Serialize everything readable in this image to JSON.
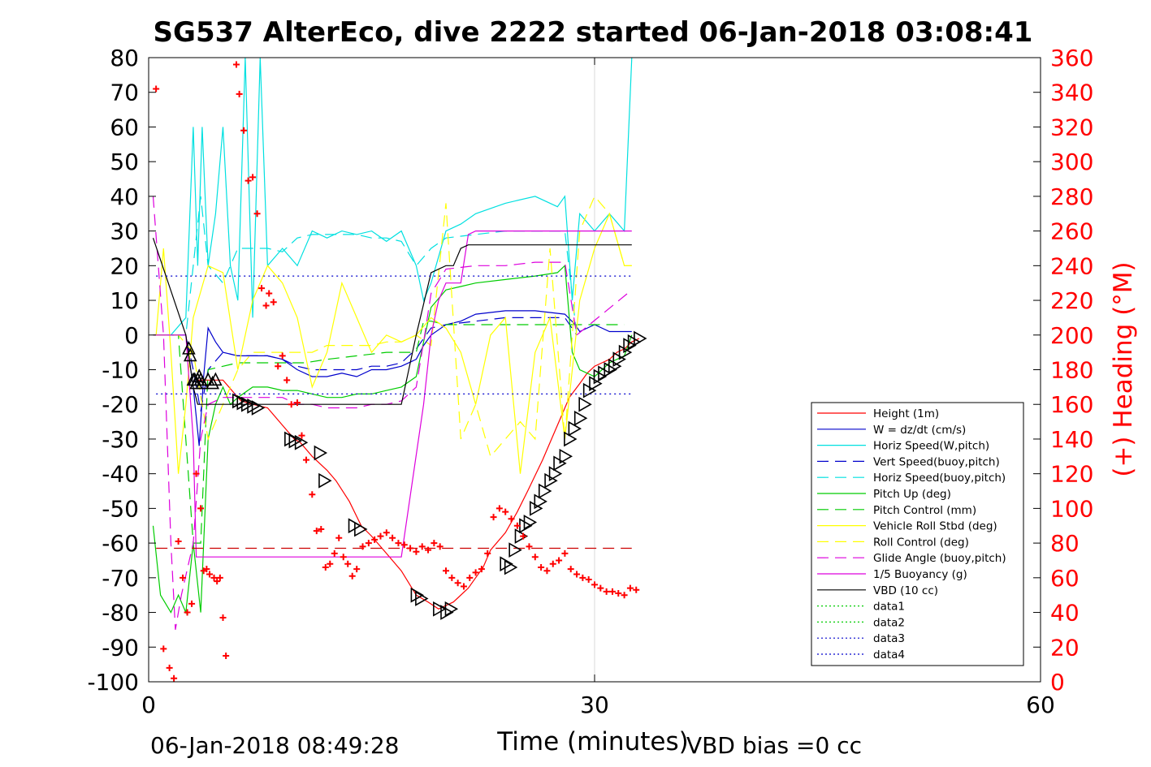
{
  "chart_data": {
    "type": "line",
    "title": "SG537 AlterEco, dive 2222 started 06-Jan-2018 03:08:41",
    "xlabel": "Time (minutes)",
    "ylabel_right": "(+) Heading (°M)",
    "xlim": [
      0,
      60
    ],
    "ylim": [
      -100,
      80
    ],
    "ylim_right": [
      0,
      360
    ],
    "xticks": [
      0,
      30,
      60
    ],
    "yticks": [
      80,
      70,
      60,
      50,
      40,
      30,
      20,
      10,
      0,
      -10,
      -20,
      -30,
      -40,
      -50,
      -60,
      -70,
      -80,
      -90,
      -100
    ],
    "yticks_right": [
      360,
      340,
      320,
      300,
      280,
      260,
      240,
      220,
      200,
      180,
      160,
      140,
      120,
      100,
      80,
      60,
      40,
      20,
      0
    ],
    "grid": "x only",
    "legend_position": "lower-right",
    "footer_left": "06-Jan-2018 08:49:28",
    "footer_right": "VBD bias =0 cc",
    "colors": {
      "axis": "#000000",
      "right_axis": "#ff0000"
    },
    "series": [
      {
        "name": "Height (1m)",
        "color": "#ff0000",
        "style": "solid",
        "x": [
          3.2,
          4.0,
          5.0,
          6.2,
          7.0,
          8.0,
          9.0,
          9.8,
          10.2,
          11.0,
          12.0,
          12.6,
          13.5,
          14.3,
          15.0,
          16.0,
          17.0,
          18.0,
          18.8,
          19.5,
          20.5,
          21.5,
          22.0,
          22.5,
          23.0,
          24.0,
          24.8,
          25.5,
          26.5,
          27.5,
          28.3,
          29.0,
          29.5,
          30.0,
          30.5,
          31.0,
          31.5,
          32.0,
          32.5,
          33.0
        ],
        "y": [
          -13,
          -13,
          -13,
          -19,
          -20,
          -21,
          -26,
          -30,
          -31,
          -35,
          -39,
          -42,
          -48,
          -55,
          -58,
          -63,
          -68,
          -75,
          -77,
          -79,
          -77,
          -73,
          -70,
          -67,
          -62,
          -57,
          -51,
          -45,
          -36,
          -26,
          -18,
          -14,
          -11,
          -9,
          -8,
          -7,
          -5,
          -4,
          -2,
          -1
        ]
      },
      {
        "name": "W = dz/dt (cm/s)",
        "color": "#0000cc",
        "style": "solid",
        "x": [
          0.5,
          1.5,
          2.5,
          3.0,
          3.4,
          3.7,
          4.0,
          4.5,
          5.0,
          6.0,
          7.0,
          8.0,
          9.0,
          10.0,
          11.0,
          12.0,
          13.0,
          14.0,
          15.0,
          16.0,
          17.0,
          18.0,
          18.5,
          19.0,
          20.0,
          21.0,
          22.0,
          24.0,
          26.0,
          28.0,
          28.7,
          29.0,
          30.0,
          31.0,
          32.0,
          32.5
        ],
        "y": [
          0,
          0,
          0,
          -15,
          -32,
          -12,
          2,
          -2,
          -5,
          -6,
          -6,
          -6,
          -7,
          -10,
          -12,
          -12,
          -11,
          -12,
          -10,
          -10,
          -9,
          -7,
          -3,
          0,
          3,
          4,
          6,
          7,
          7,
          6,
          3,
          1,
          3,
          1,
          1,
          1
        ]
      },
      {
        "name": "Horiz Speed(W,pitch)",
        "color": "#00e0e0",
        "style": "solid",
        "x": [
          0.5,
          1.5,
          2.5,
          3.0,
          3.3,
          3.6,
          4.0,
          4.5,
          5.0,
          5.5,
          6.0,
          6.5,
          7.0,
          7.5,
          8.0,
          9.0,
          10.0,
          11.0,
          12.0,
          13.0,
          14.0,
          15.0,
          16.0,
          17.0,
          18.0,
          18.5,
          19.0,
          20.0,
          21.0,
          22.0,
          24.0,
          26.0,
          27.5,
          28.0,
          28.5,
          29.0,
          30.0,
          31.0,
          32.0,
          32.5
        ],
        "y": [
          0,
          0,
          5,
          60,
          20,
          60,
          20,
          35,
          60,
          20,
          10,
          80,
          5,
          80,
          20,
          25,
          20,
          30,
          28,
          30,
          29,
          30,
          27,
          30,
          20,
          10,
          15,
          30,
          32,
          35,
          38,
          40,
          37,
          40,
          10,
          35,
          30,
          35,
          30,
          80
        ]
      },
      {
        "name": "Vert Speed(buoy,pitch)",
        "color": "#0000cc",
        "style": "dashed",
        "x": [
          0.5,
          1.5,
          2.5,
          3.0,
          3.5,
          4.0,
          5.0,
          6.0,
          7.0,
          8.0,
          9.0,
          10.0,
          11.0,
          12.0,
          13.0,
          14.0,
          15.0,
          16.0,
          17.0,
          18.0,
          19.0,
          20.0,
          22.0,
          24.0,
          26.0,
          28.0,
          28.8
        ],
        "y": [
          0,
          0,
          0,
          -10,
          -22,
          -10,
          -5,
          -6,
          -6,
          -6,
          -7,
          -9,
          -10,
          -10,
          -10,
          -10,
          -9,
          -9,
          -8,
          -4,
          2,
          3,
          4,
          5,
          5,
          5,
          0
        ]
      },
      {
        "name": "Horiz Speed(buoy,pitch)",
        "color": "#00e0e0",
        "style": "dashed",
        "x": [
          0.5,
          1.5,
          2.5,
          3.0,
          3.5,
          4.0,
          5.0,
          6.0,
          7.0,
          8.0,
          9.0,
          10.0,
          11.0,
          12.0,
          13.0,
          14.0,
          15.0,
          16.0,
          17.0,
          18.0,
          19.0,
          20.0,
          22.0,
          24.0,
          26.0,
          28.0,
          28.8
        ],
        "y": [
          0,
          0,
          0,
          20,
          40,
          20,
          15,
          25,
          25,
          25,
          24,
          28,
          29,
          29,
          29,
          29,
          28,
          28,
          27,
          20,
          25,
          28,
          29,
          30,
          30,
          30,
          0
        ]
      },
      {
        "name": "Pitch Up (deg)",
        "color": "#00cc00",
        "style": "solid",
        "x": [
          0.3,
          0.8,
          1.5,
          2.0,
          2.5,
          3.0,
          3.5,
          4.0,
          4.5,
          5.0,
          5.5,
          6.0,
          7.0,
          8.0,
          9.0,
          10.0,
          11.0,
          12.0,
          13.0,
          14.0,
          15.0,
          16.0,
          17.0,
          18.0,
          18.5,
          19.0,
          20.0,
          21.0,
          22.0,
          24.0,
          26.0,
          27.5,
          28.0,
          28.5,
          29.0,
          30.0,
          31.0,
          32.0,
          32.5
        ],
        "y": [
          -55,
          -75,
          -80,
          -75,
          -80,
          -60,
          -80,
          -30,
          -20,
          -15,
          -20,
          -18,
          -15,
          -15,
          -16,
          -16,
          -17,
          -18,
          -18,
          -17,
          -17,
          -16,
          -15,
          -12,
          -2,
          8,
          13,
          14,
          15,
          16,
          17,
          18,
          20,
          -5,
          -10,
          -12,
          -8,
          -6,
          0
        ]
      },
      {
        "name": "Pitch Control (mm)",
        "color": "#00cc00",
        "style": "dashed",
        "x": [
          0.3,
          2.0,
          3.0,
          3.5,
          4.0,
          6.0,
          8.0,
          10.0,
          10.5,
          12.0,
          14.0,
          16.0,
          18.0,
          18.5,
          19.0,
          20.0,
          22.0,
          24.0,
          26.0,
          28.0,
          28.8,
          30.0,
          32.0
        ],
        "y": [
          0,
          0,
          -60,
          -60,
          -10,
          -8,
          -8,
          -8,
          -8,
          -7,
          -6,
          -5,
          -5,
          4,
          4,
          3,
          3,
          3,
          3,
          3,
          3,
          3,
          3
        ]
      },
      {
        "name": "Vehicle Roll Stbd (deg)",
        "color": "#ffff00",
        "style": "solid",
        "x": [
          0.5,
          1.0,
          1.5,
          2.0,
          2.5,
          3.0,
          4.0,
          5.0,
          6.0,
          7.0,
          8.0,
          9.0,
          10.0,
          11.0,
          12.0,
          13.0,
          14.0,
          15.0,
          16.0,
          17.0,
          18.0,
          19.0,
          20.0,
          21.0,
          22.0,
          23.0,
          24.0,
          25.0,
          26.0,
          27.0,
          28.0,
          29.0,
          30.0,
          31.0,
          32.0,
          32.5
        ],
        "y": [
          0,
          25,
          -5,
          -40,
          -20,
          5,
          20,
          18,
          -10,
          10,
          20,
          15,
          5,
          -15,
          -5,
          15,
          5,
          -5,
          0,
          -2,
          0,
          5,
          2,
          -5,
          -20,
          0,
          5,
          -40,
          -5,
          5,
          -30,
          10,
          25,
          35,
          20,
          20
        ]
      },
      {
        "name": "Roll Control (deg)",
        "color": "#ffff00",
        "style": "dashed",
        "x": [
          0.5,
          2.0,
          3.0,
          4.0,
          5.0,
          6.0,
          7.0,
          8.0,
          9.0,
          10.0,
          11.0,
          12.0,
          13.0,
          14.0,
          15.0,
          16.0,
          17.0,
          18.0,
          19.0,
          20.0,
          21.0,
          22.0,
          23.0,
          24.0,
          25.0,
          26.0,
          27.0,
          28.0,
          29.0,
          30.0,
          31.0,
          32.0,
          32.5
        ],
        "y": [
          0,
          0,
          -5,
          -30,
          -20,
          -10,
          -5,
          -5,
          -5,
          -5,
          -5,
          -3,
          -3,
          -3,
          -3,
          -2,
          -2,
          0,
          -3,
          38,
          -30,
          -20,
          -35,
          -30,
          -25,
          -30,
          25,
          -30,
          30,
          40,
          35,
          20,
          20
        ]
      },
      {
        "name": "Glide Angle (buoy,pitch)",
        "color": "#dd00dd",
        "style": "dashed",
        "x": [
          0.3,
          1.0,
          1.5,
          1.8,
          2.2,
          3.0,
          3.5,
          4.0,
          5.0,
          6.0,
          7.0,
          8.0,
          9.0,
          10.0,
          11.0,
          12.0,
          13.0,
          14.0,
          15.0,
          16.0,
          17.0,
          18.0,
          18.5,
          19.0,
          20.0,
          22.0,
          24.0,
          26.0,
          28.0,
          28.8,
          32.5
        ],
        "y": [
          40,
          0,
          -60,
          -85,
          -75,
          -60,
          -30,
          -20,
          -18,
          -18,
          -18,
          -18,
          -18,
          -20,
          -20,
          -21,
          -21,
          -21,
          -20,
          -20,
          -19,
          -15,
          -2,
          12,
          19,
          20,
          20,
          21,
          21,
          0,
          13
        ]
      },
      {
        "name": "1/5 Buoyancy (g)",
        "color": "#dd00dd",
        "style": "solid",
        "x": [
          0.3,
          2.5,
          3.0,
          3.2,
          4.0,
          8.0,
          12.0,
          14.0,
          16.0,
          17.0,
          18.5,
          19.0,
          19.5,
          20.0,
          21.0,
          21.5,
          22.0,
          32.5
        ],
        "y": [
          0,
          0,
          -30,
          -64,
          -64,
          -64,
          -64,
          -64,
          -64,
          -64,
          -20,
          0,
          10,
          15,
          15,
          29,
          30,
          30
        ]
      },
      {
        "name": "VBD (10 cc)",
        "color": "#000000",
        "style": "solid",
        "x": [
          0.3,
          2.5,
          3.0,
          3.3,
          4.0,
          8.0,
          12.0,
          17.0,
          18.0,
          19.0,
          20.0,
          20.5,
          21.0,
          21.5,
          22.0,
          32.5
        ],
        "y": [
          28,
          0,
          -15,
          -20,
          -20,
          -20,
          -20,
          -20,
          0,
          18,
          20,
          20,
          25,
          26,
          26,
          26
        ]
      },
      {
        "name": "data1",
        "color": "#00cc00",
        "style": "dotted",
        "x": [],
        "y": []
      },
      {
        "name": "data2",
        "color": "#00cc00",
        "style": "dotted",
        "x": [],
        "y": []
      },
      {
        "name": "data3",
        "color": "#0000cc",
        "style": "dotted",
        "x": [
          0.5,
          32.5
        ],
        "y": [
          17,
          17
        ]
      },
      {
        "name": "data4",
        "color": "#0000cc",
        "style": "dotted",
        "x": [
          0.5,
          32.5
        ],
        "y": [
          -17,
          -17
        ]
      }
    ],
    "reference_lines": [
      {
        "color": "#cc0000",
        "style": "dashed",
        "y": -61.5,
        "x": [
          0.5,
          32.5
        ]
      }
    ],
    "markers": {
      "triangles_up": {
        "x": [
          2.7,
          2.8,
          3.0,
          3.1,
          3.2,
          3.3,
          3.4,
          3.5,
          3.6,
          4.0,
          4.3,
          4.5
        ],
        "y": [
          -4,
          -6,
          -13,
          -13,
          -14,
          -13,
          -12,
          -13,
          -14,
          -13,
          -14,
          -13
        ]
      },
      "triangles_down": {
        "x": [
          6.0,
          6.3,
          6.6,
          7.0,
          7.3,
          9.5,
          9.8,
          10.2,
          11.5,
          11.8,
          13.8,
          14.2,
          18.0,
          18.3,
          19.5,
          20.0,
          20.3,
          24.0,
          24.3,
          24.6,
          25.0,
          25.3,
          25.6,
          26.0,
          26.3,
          26.6,
          27.0,
          27.3,
          27.6,
          28.0,
          28.3,
          28.6,
          29.0,
          29.3,
          29.6,
          30.0,
          30.3,
          30.6,
          31.0,
          31.3,
          31.6,
          32.0,
          32.3,
          32.6,
          33.0
        ],
        "y": [
          -19,
          -19.5,
          -20,
          -20.5,
          -21,
          -30,
          -30.5,
          -31,
          -34,
          -42,
          -55,
          -56,
          -75,
          -76,
          -79,
          -80,
          -79,
          -66,
          -67,
          -62,
          -58,
          -55,
          -54,
          -50,
          -48,
          -45,
          -42,
          -40,
          -37,
          -35,
          -30,
          -27,
          -24,
          -20,
          -16,
          -14,
          -12,
          -11,
          -10,
          -9,
          -7,
          -5,
          -3,
          -2,
          -1
        ]
      },
      "heading_plus": {
        "x": [
          0.5,
          1.0,
          1.4,
          1.7,
          2.0,
          2.3,
          2.6,
          2.9,
          3.2,
          3.5,
          3.7,
          3.9,
          4.1,
          4.4,
          4.6,
          4.8,
          5.0,
          5.2,
          5.5,
          5.9,
          6.1,
          6.4,
          6.7,
          7.0,
          7.3,
          7.6,
          7.9,
          8.1,
          8.4,
          8.7,
          9.0,
          9.3,
          9.6,
          10.0,
          10.3,
          10.6,
          11.0,
          11.3,
          11.6,
          11.9,
          12.2,
          12.5,
          12.8,
          13.1,
          13.4,
          13.7,
          14.0,
          14.4,
          14.8,
          15.2,
          15.6,
          16.0,
          16.4,
          16.8,
          17.2,
          17.6,
          18.0,
          18.4,
          18.8,
          19.2,
          19.6,
          20.0,
          20.4,
          20.8,
          21.2,
          21.6,
          22.0,
          22.4,
          22.8,
          23.2,
          23.6,
          24.0,
          24.4,
          24.8,
          25.2,
          25.6,
          26.0,
          26.4,
          26.8,
          27.2,
          27.6,
          28.0,
          28.4,
          28.8,
          29.2,
          29.6,
          30.0,
          30.4,
          30.8,
          31.2,
          31.6,
          32.0,
          32.4,
          32.8
        ],
        "y": [
          342,
          19,
          8,
          2,
          81,
          60,
          40,
          45,
          120,
          100,
          64,
          65,
          62,
          60,
          58,
          60,
          37,
          15,
          366,
          356,
          339,
          318,
          289,
          291,
          270,
          227,
          217,
          224,
          219,
          182,
          188,
          174,
          160,
          161,
          142,
          128,
          108,
          87,
          88,
          66,
          68,
          74,
          83,
          72,
          68,
          61,
          65,
          78,
          80,
          82,
          84,
          86,
          83,
          80,
          79,
          77,
          75,
          78,
          76,
          80,
          78,
          64,
          60,
          57,
          55,
          60,
          63,
          65,
          74,
          95,
          100,
          98,
          94,
          90,
          84,
          78,
          72,
          66,
          64,
          68,
          70,
          74,
          65,
          62,
          60,
          59,
          56,
          54,
          52,
          52,
          51,
          50,
          54,
          53
        ]
      }
    }
  }
}
